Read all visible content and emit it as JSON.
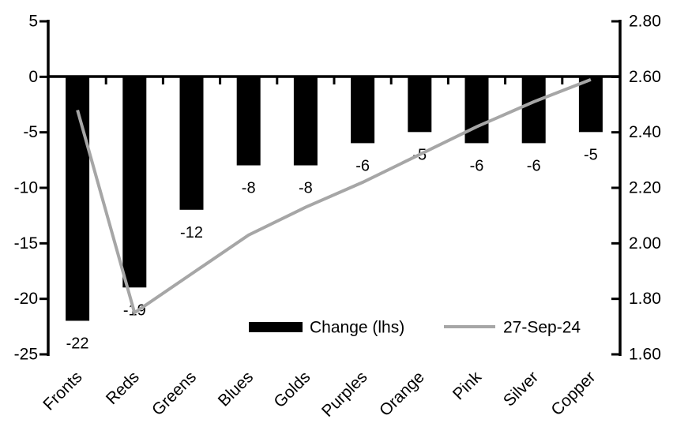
{
  "chart_data": {
    "type": "bar+line combo",
    "categories": [
      "Fronts",
      "Reds",
      "Greens",
      "Blues",
      "Golds",
      "Purples",
      "Orange",
      "Pink",
      "Silver",
      "Copper"
    ],
    "series": [
      {
        "name": "Change (lhs)",
        "type": "bar",
        "axis": "left",
        "color": "#000000",
        "values": [
          -22,
          -19,
          -12,
          -8,
          -8,
          -6,
          -5,
          -6,
          -6,
          -5
        ],
        "data_labels": [
          "-22",
          "-19",
          "-12",
          "-8",
          "-8",
          "-6",
          "-5",
          "-6",
          "-6",
          "-5"
        ]
      },
      {
        "name": "27-Sep-24",
        "type": "line",
        "axis": "right",
        "color": "#a6a6a6",
        "values": [
          2.48,
          1.75,
          1.89,
          2.03,
          2.13,
          2.22,
          2.32,
          2.42,
          2.51,
          2.59
        ]
      }
    ],
    "left_axis": {
      "min": -25,
      "max": 5,
      "step": 5,
      "tick_labels": [
        "5",
        "0",
        "-5",
        "-10",
        "-15",
        "-20",
        "-25"
      ]
    },
    "right_axis": {
      "min": 1.6,
      "max": 2.8,
      "step": 0.2,
      "tick_labels": [
        "2.80",
        "2.60",
        "2.40",
        "2.20",
        "2.00",
        "1.80",
        "1.60"
      ]
    },
    "legend": [
      {
        "label": "Change (lhs)",
        "swatch": "bar",
        "color": "#000000"
      },
      {
        "label": "27-Sep-24",
        "swatch": "line",
        "color": "#a6a6a6"
      }
    ],
    "legend_position": "inside-bottom-center",
    "grid": false,
    "title": "",
    "xlabel": "",
    "ylabel_left": "",
    "ylabel_right": ""
  },
  "colors": {
    "background": "#ffffff",
    "axis": "#000000",
    "bar": "#000000",
    "line": "#a6a6a6",
    "text": "#000000"
  }
}
